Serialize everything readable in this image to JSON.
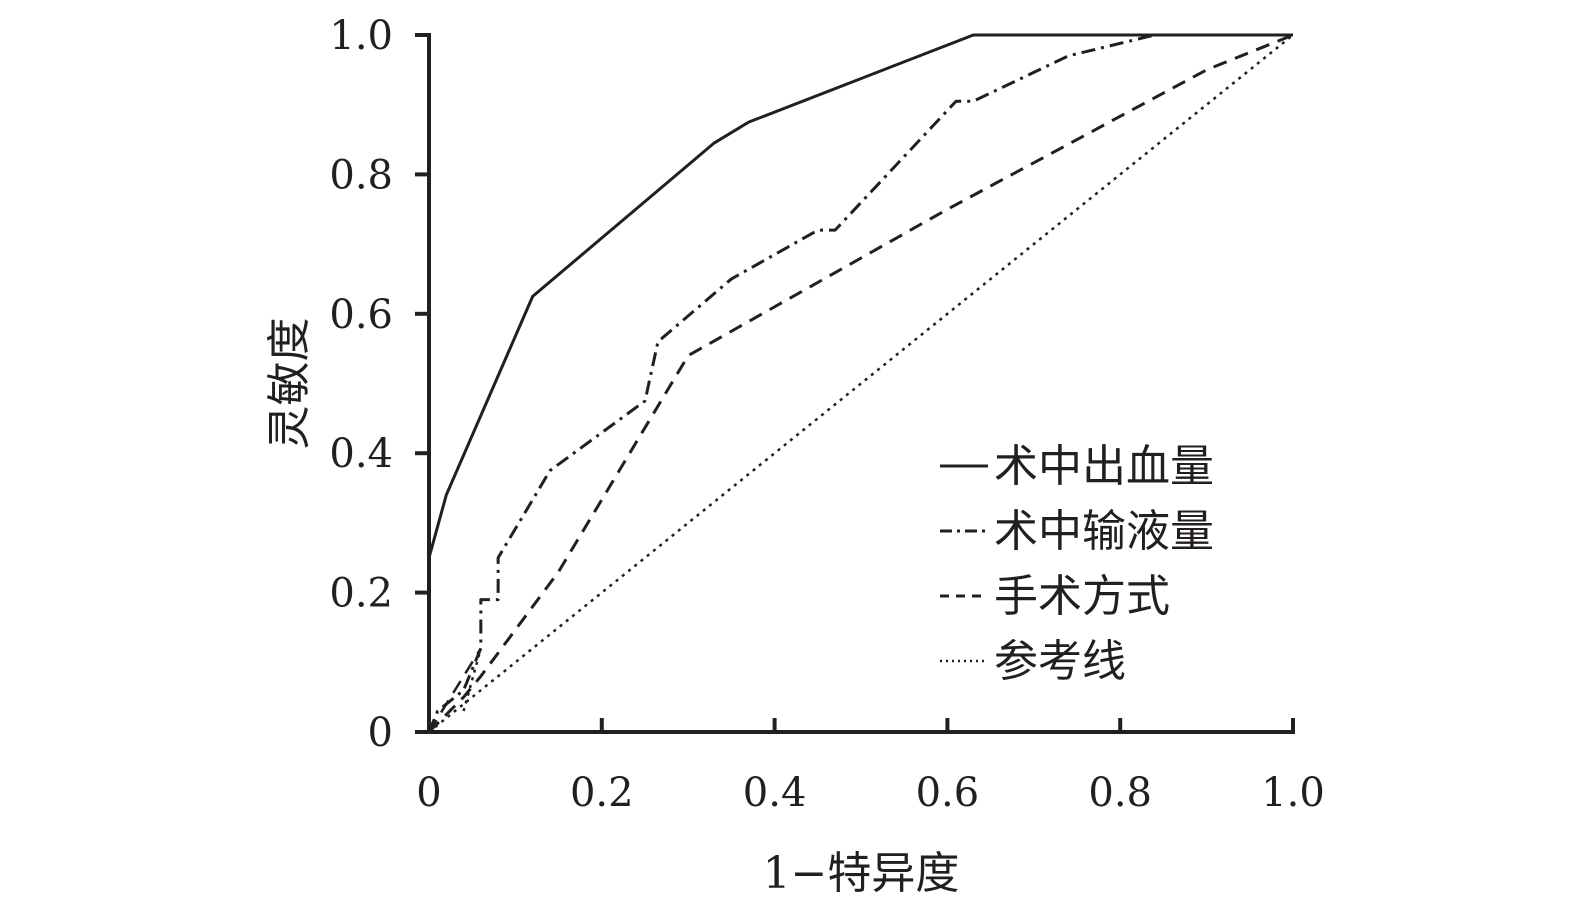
{
  "chart_data": {
    "type": "line",
    "title": "",
    "xlabel": "1−特异度",
    "ylabel": "灵敏度",
    "xlim": [
      0,
      1
    ],
    "ylim": [
      0,
      1
    ],
    "x_ticks": [
      "0",
      "0.2",
      "0.4",
      "0.6",
      "0.8",
      "1.0"
    ],
    "y_ticks": [
      "0",
      "0.2",
      "0.4",
      "0.6",
      "0.8",
      "1.0"
    ],
    "grid": false,
    "legend_position": "bottom-right",
    "series": [
      {
        "name": "术中出血量",
        "style": "solid",
        "color": "#231f20",
        "x": [
          0.0,
          0.02,
          0.12,
          0.33,
          0.37,
          0.63,
          1.0
        ],
        "y": [
          0.25,
          0.34,
          0.625,
          0.845,
          0.875,
          1.0,
          1.0
        ]
      },
      {
        "name": "术中输液量",
        "style": "dashdot",
        "color": "#231f20",
        "x": [
          0.0,
          0.01,
          0.04,
          0.06,
          0.06,
          0.08,
          0.08,
          0.14,
          0.25,
          0.265,
          0.35,
          0.45,
          0.47,
          0.61,
          0.63,
          0.74,
          0.84,
          1.0
        ],
        "y": [
          0.0,
          0.03,
          0.06,
          0.12,
          0.19,
          0.19,
          0.25,
          0.375,
          0.475,
          0.56,
          0.65,
          0.72,
          0.72,
          0.905,
          0.905,
          0.97,
          1.0,
          1.0
        ],
        "segments": [
          {
            "x": [
              0.0,
              0.06
            ],
            "y": [
              0.0,
              0.12
            ],
            "style": "dashed"
          },
          {
            "x": [
              0.04,
              0.06
            ],
            "y": [
              0.03,
              0.12
            ],
            "style": "dotted"
          }
        ]
      },
      {
        "name": "手术方式",
        "style": "dashed",
        "color": "#231f20",
        "x": [
          0.0,
          0.04,
          0.06,
          0.15,
          0.3,
          0.6,
          0.9,
          1.0
        ],
        "y": [
          0.0,
          0.05,
          0.08,
          0.23,
          0.54,
          0.75,
          0.95,
          1.0
        ]
      },
      {
        "name": "参考线",
        "style": "dotted",
        "color": "#231f20",
        "x": [
          0.0,
          1.0
        ],
        "y": [
          0.0,
          1.0
        ]
      }
    ]
  }
}
